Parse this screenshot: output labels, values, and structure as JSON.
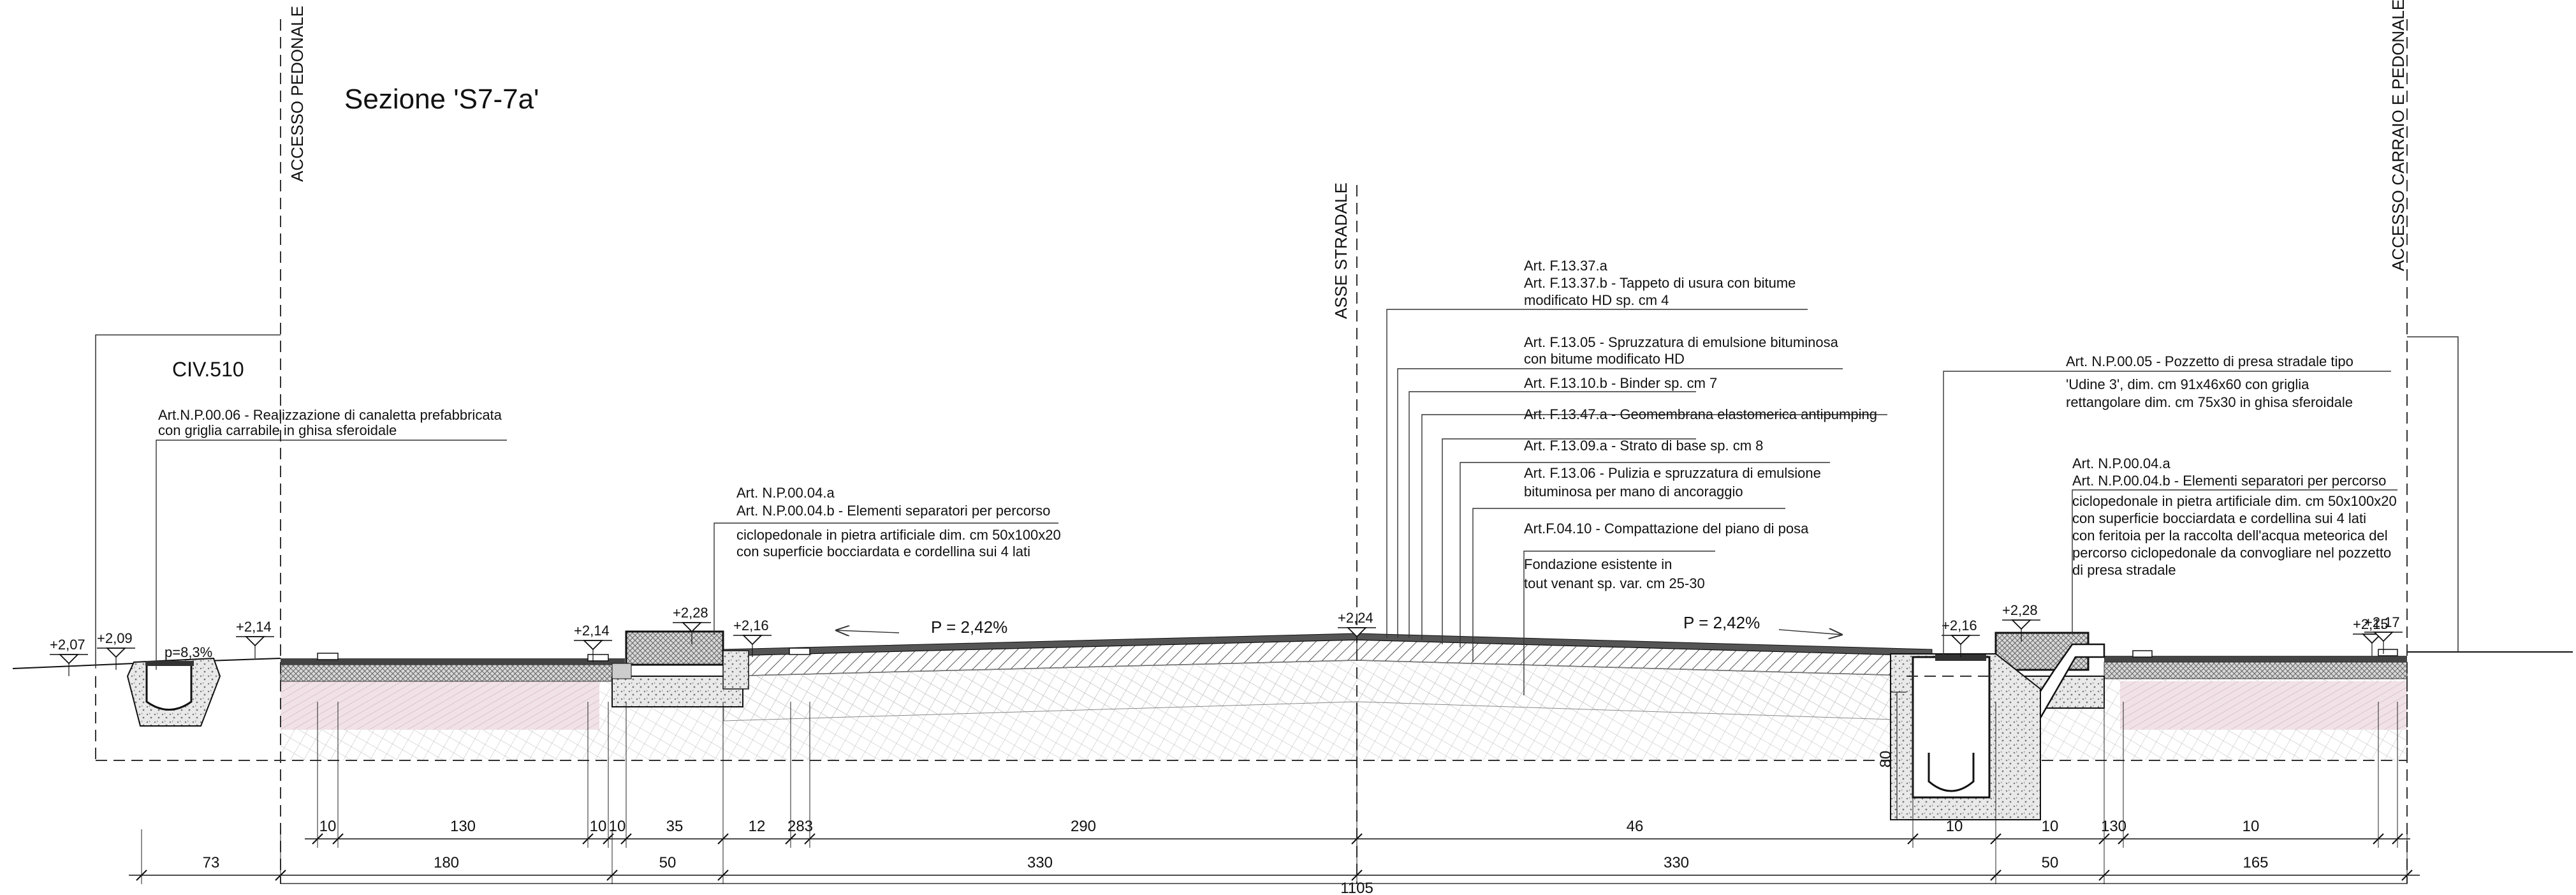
{
  "title": "Sezione 'S7-7a'",
  "civic": "CIV.510",
  "axes": {
    "pedestrian_left": "ACCESSO PEDONALE",
    "road_axis": "ASSE STRADALE",
    "right_access": "ACCESSO CARRAIO E PEDONALE"
  },
  "slopes": {
    "left": "P = 2,42%",
    "right": "P = 2,42%",
    "channel": "p=8,3%"
  },
  "elevations": [
    "+2,07",
    "+2,09",
    "+2,14",
    "+2,14",
    "+2,28",
    "+2,16",
    "+2,24",
    "+2,16",
    "+2,28",
    "+2,15",
    "+2,17"
  ],
  "notes": {
    "channel": [
      "Art.N.P.00.06 - Realizzazione di canaletta prefabbricata",
      "con griglia carrabile in ghisa sferoidale"
    ],
    "separator_left": [
      "Art. N.P.00.04.a",
      "Art. N.P.00.04.b - Elementi separatori per percorso",
      "ciclopedonale in pietra artificiale dim. cm 50x100x20",
      "con superficie bocciardata e cordellina sui 4 lati"
    ],
    "layers": [
      [
        "Art. F.13.37.a",
        "Art. F.13.37.b - Tappeto  di usura con bitume",
        "modificato HD sp. cm 4"
      ],
      [
        "Art. F.13.05 - Spruzzatura di emulsione bituminosa",
        "con bitume modificato HD"
      ],
      [
        "Art. F.13.10.b - Binder sp. cm 7"
      ],
      [
        "Art. F.13.47.a - Geomembrana elastomerica antipumping"
      ],
      [
        "Art. F.13.09.a - Strato di base sp. cm 8"
      ],
      [
        "Art. F.13.06 - Pulizia e spruzzatura di emulsione",
        "bituminosa per mano di ancoraggio"
      ],
      [
        "Art.F.04.10 - Compattazione del piano di posa"
      ],
      [
        "Fondazione esistente in",
        "tout venant sp. var. cm 25-30"
      ]
    ],
    "manhole": [
      "Art. N.P.00.05 - Pozzetto di presa stradale tipo",
      "'Udine 3', dim. cm 91x46x60 con griglia",
      "rettangolare dim. cm 75x30 in ghisa sferoidale"
    ],
    "separator_right": [
      "Art. N.P.00.04.a",
      "Art. N.P.00.04.b - Elementi separatori per percorso",
      "ciclopedonale in pietra artificiale dim. cm 50x100x20",
      "con superficie bocciardata e cordellina sui 4 lati",
      "con feritoia per la raccolta dell'acqua meteorica del",
      "percorso ciclopedonale da convogliare nel pozzetto",
      "di presa stradale"
    ]
  },
  "dimensions": {
    "row1": [
      "10",
      "130",
      "10",
      "10",
      "35",
      "12",
      "283",
      "290",
      "46",
      "10",
      "10",
      "130",
      "10"
    ],
    "row2": [
      "73",
      "180",
      "50",
      "330",
      "330",
      "50",
      "165"
    ],
    "total": "1105",
    "manhole_depth": "80"
  }
}
